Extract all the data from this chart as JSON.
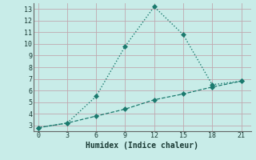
{
  "xlabel": "Humidex (Indice chaleur)",
  "bg_color": "#c8ece8",
  "grid_color": "#c0a8b0",
  "line_color": "#1a7a6e",
  "line1_x": [
    0,
    3,
    6,
    9,
    12,
    15,
    18,
    21
  ],
  "line1_y": [
    2.8,
    3.2,
    5.5,
    9.8,
    13.2,
    10.8,
    6.5,
    6.8
  ],
  "line2_x": [
    0,
    3,
    6,
    9,
    12,
    15,
    18,
    21
  ],
  "line2_y": [
    2.8,
    3.2,
    3.8,
    4.4,
    5.2,
    5.7,
    6.3,
    6.8
  ],
  "xlim": [
    -0.5,
    22
  ],
  "ylim": [
    2.5,
    13.5
  ],
  "yticks": [
    3,
    4,
    5,
    6,
    7,
    8,
    9,
    10,
    11,
    12,
    13
  ],
  "xticks": [
    0,
    3,
    6,
    9,
    12,
    15,
    18,
    21
  ],
  "markersize": 3
}
